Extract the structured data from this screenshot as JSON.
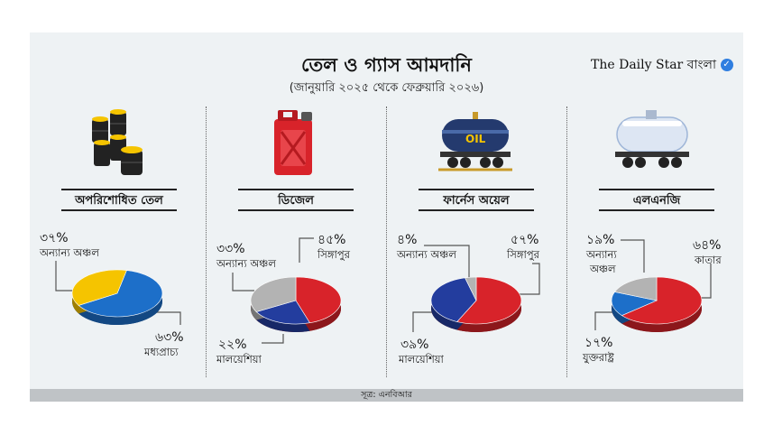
{
  "header": {
    "title": "তেল ও গ্যাস আমদানি",
    "subtitle": "(জানুয়ারি ২০২৫ থেকে ফেব্রুয়ারি ২০২৬)",
    "brand": "The Daily Star বাংলা"
  },
  "footer": {
    "source": "সূত্র: এনবিআর"
  },
  "icons": [
    "oil-barrels-icon",
    "jerrycan-icon",
    "oil-tanker-wagon-icon",
    "lng-tanker-wagon-icon"
  ],
  "colors": {
    "yellow": "#f5c400",
    "blue": "#1d6fc9",
    "red": "#d8232a",
    "navy": "#233d9e",
    "gray": "#b3b3b3",
    "panel": "#eef2f4"
  },
  "chart_data": [
    {
      "type": "pie",
      "title": "অপরিশোধিত তেল",
      "slices": [
        {
          "label": "মধ্যপ্রাচ্য",
          "value": 63,
          "display": "৬৩%",
          "color": "#1d6fc9"
        },
        {
          "label": "অন্যান্য অঞ্চল",
          "value": 37,
          "display": "৩৭%",
          "color": "#f5c400"
        }
      ]
    },
    {
      "type": "pie",
      "title": "ডিজেল",
      "slices": [
        {
          "label": "সিঙ্গাপুর",
          "value": 45,
          "display": "৪৫%",
          "color": "#d8232a"
        },
        {
          "label": "মালয়েশিয়া",
          "value": 22,
          "display": "২২%",
          "color": "#233d9e"
        },
        {
          "label": "অন্যান্য অঞ্চল",
          "value": 33,
          "display": "৩৩%",
          "color": "#b3b3b3"
        }
      ]
    },
    {
      "type": "pie",
      "title": "ফার্নেস অয়েল",
      "slices": [
        {
          "label": "সিঙ্গাপুর",
          "value": 57,
          "display": "৫৭%",
          "color": "#d8232a"
        },
        {
          "label": "মালয়েশিয়া",
          "value": 39,
          "display": "৩৯%",
          "color": "#233d9e"
        },
        {
          "label": "অন্যান্য অঞ্চল",
          "value": 4,
          "display": "৪%",
          "color": "#b3b3b3"
        }
      ]
    },
    {
      "type": "pie",
      "title": "এলএনজি",
      "slices": [
        {
          "label": "কাতার",
          "value": 64,
          "display": "৬৪%",
          "color": "#d8232a"
        },
        {
          "label": "যুক্তরাষ্ট্র",
          "value": 17,
          "display": "১৭%",
          "color": "#1d6fc9"
        },
        {
          "label": "অন্যান্য অঞ্চল",
          "value": 19,
          "display": "১৯%",
          "color": "#b3b3b3"
        }
      ]
    }
  ]
}
